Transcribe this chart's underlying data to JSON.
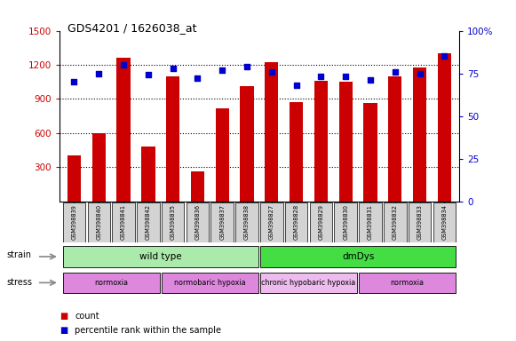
{
  "title": "GDS4201 / 1626038_at",
  "samples": [
    "GSM398839",
    "GSM398840",
    "GSM398841",
    "GSM398842",
    "GSM398835",
    "GSM398836",
    "GSM398837",
    "GSM398838",
    "GSM398827",
    "GSM398828",
    "GSM398829",
    "GSM398830",
    "GSM398831",
    "GSM398832",
    "GSM398833",
    "GSM398834"
  ],
  "counts": [
    400,
    600,
    1260,
    480,
    1100,
    260,
    820,
    1010,
    1220,
    870,
    1060,
    1050,
    860,
    1100,
    1180,
    1300
  ],
  "percentiles": [
    70,
    75,
    80,
    74,
    78,
    72,
    77,
    79,
    76,
    68,
    73,
    73,
    71,
    76,
    75,
    85
  ],
  "ylim_left": [
    0,
    1500
  ],
  "ylim_right": [
    0,
    100
  ],
  "yticks_left": [
    300,
    600,
    900,
    1200,
    1500
  ],
  "yticks_right": [
    0,
    25,
    50,
    75,
    100
  ],
  "bar_color": "#cc0000",
  "dot_color": "#0000cc",
  "strain_groups": [
    {
      "label": "wild type",
      "start": 0,
      "end": 7,
      "color": "#aaeaaa"
    },
    {
      "label": "dmDys",
      "start": 8,
      "end": 15,
      "color": "#44dd44"
    }
  ],
  "stress_groups": [
    {
      "label": "normoxia",
      "start": 0,
      "end": 3,
      "color": "#dd88dd"
    },
    {
      "label": "normobaric hypoxia",
      "start": 4,
      "end": 7,
      "color": "#dd88dd"
    },
    {
      "label": "chronic hypobaric hypoxia",
      "start": 8,
      "end": 11,
      "color": "#eebbee"
    },
    {
      "label": "normoxia",
      "start": 12,
      "end": 15,
      "color": "#dd88dd"
    }
  ],
  "left_axis_color": "#cc0000",
  "right_axis_color": "#0000cc",
  "legend_count_color": "#cc0000",
  "legend_dot_color": "#0000cc",
  "bg_color": "#ffffff"
}
